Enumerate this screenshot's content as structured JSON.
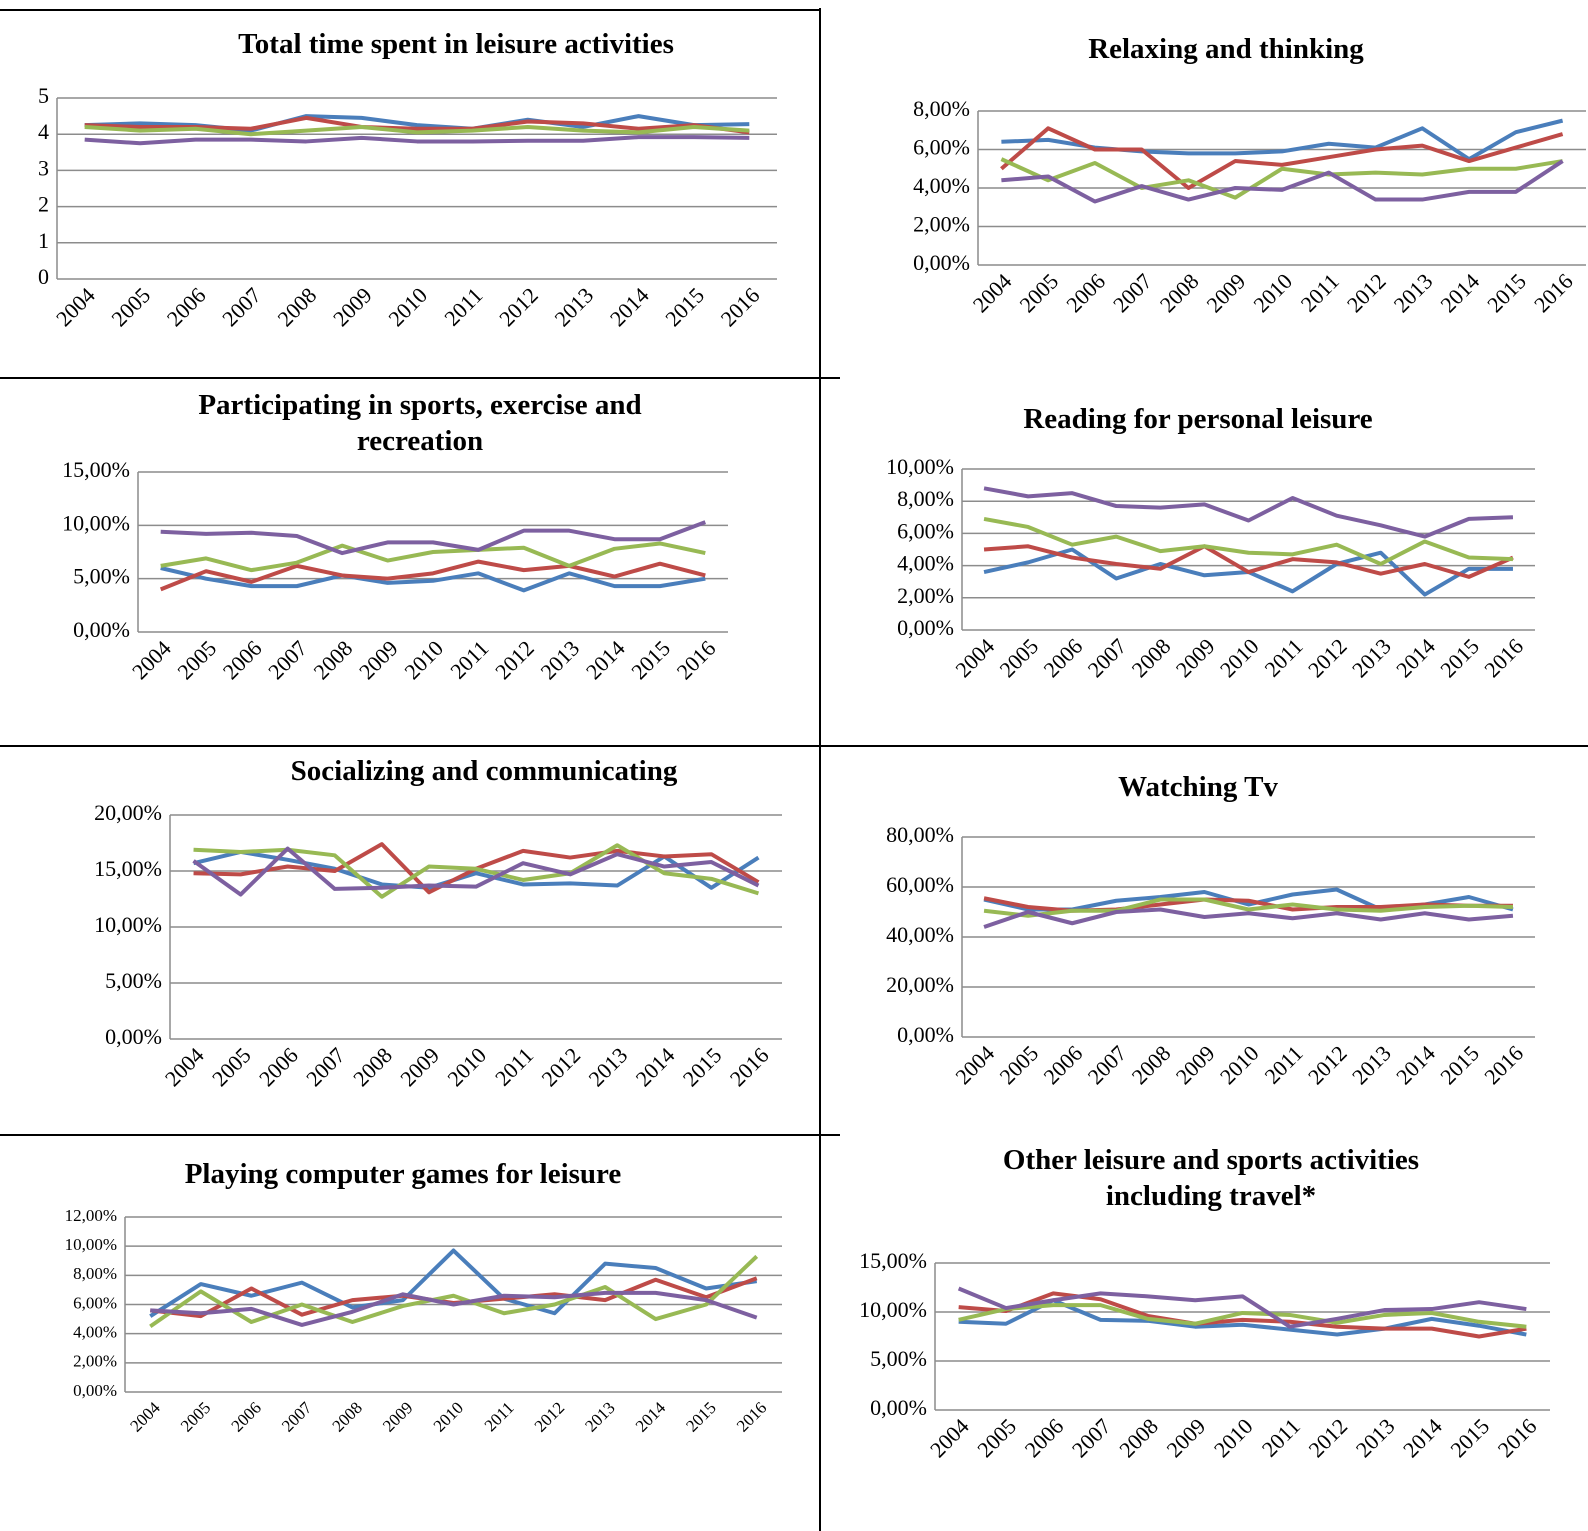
{
  "chart_data": [
    {
      "type": "line",
      "title": "Total time spent in leisure activities",
      "categories": [
        "2004",
        "2005",
        "2006",
        "2007",
        "2008",
        "2009",
        "2010",
        "2011",
        "2012",
        "2013",
        "2014",
        "2015",
        "2016"
      ],
      "series": [
        {
          "color": "#4a7ebb",
          "values": [
            4.25,
            4.3,
            4.25,
            4.1,
            4.5,
            4.45,
            4.25,
            4.15,
            4.4,
            4.2,
            4.5,
            4.25,
            4.28
          ]
        },
        {
          "color": "#be4b48",
          "values": [
            4.25,
            4.2,
            4.2,
            4.15,
            4.45,
            4.2,
            4.15,
            4.15,
            4.35,
            4.3,
            4.15,
            4.25,
            4.05
          ]
        },
        {
          "color": "#98b954",
          "values": [
            4.2,
            4.1,
            4.15,
            4.0,
            4.1,
            4.2,
            4.05,
            4.1,
            4.2,
            4.1,
            4.05,
            4.2,
            4.1
          ]
        },
        {
          "color": "#7d60a0",
          "values": [
            3.85,
            3.75,
            3.85,
            3.85,
            3.8,
            3.9,
            3.8,
            3.8,
            3.82,
            3.82,
            3.92,
            3.92,
            3.9
          ]
        }
      ],
      "ylim": [
        0,
        5
      ],
      "yticks": [
        0,
        1,
        2,
        3,
        4,
        5
      ],
      "grid": true
    },
    {
      "type": "line",
      "title": "Relaxing and thinking",
      "categories": [
        "2004",
        "2005",
        "2006",
        "2007",
        "2008",
        "2009",
        "2010",
        "2011",
        "2012",
        "2013",
        "2014",
        "2015",
        "2016"
      ],
      "series": [
        {
          "color": "#4a7ebb",
          "values": [
            6.4,
            6.5,
            6.1,
            5.9,
            5.8,
            5.8,
            5.9,
            6.3,
            6.1,
            7.1,
            5.5,
            6.9,
            7.5
          ]
        },
        {
          "color": "#be4b48",
          "values": [
            5.0,
            7.1,
            6.0,
            6.0,
            4.0,
            5.4,
            5.2,
            5.6,
            6.0,
            6.2,
            5.4,
            6.1,
            6.8
          ]
        },
        {
          "color": "#98b954",
          "values": [
            5.5,
            4.4,
            5.3,
            4.0,
            4.4,
            3.5,
            5.0,
            4.7,
            4.8,
            4.7,
            5.0,
            5.0,
            5.4
          ]
        },
        {
          "color": "#7d60a0",
          "values": [
            4.4,
            4.6,
            3.3,
            4.1,
            3.4,
            4.0,
            3.9,
            4.8,
            3.4,
            3.4,
            3.8,
            3.8,
            5.4
          ]
        }
      ],
      "ylim": [
        0,
        8
      ],
      "yticks": [
        {
          "value": 0,
          "label": "0,00%"
        },
        {
          "value": 2,
          "label": "2,00%"
        },
        {
          "value": 4,
          "label": "4,00%"
        },
        {
          "value": 6,
          "label": "6,00%"
        },
        {
          "value": 8,
          "label": "8,00%"
        }
      ],
      "grid": true
    },
    {
      "type": "line",
      "title": "Participating in sports, exercise and recreation",
      "categories": [
        "2004",
        "2005",
        "2006",
        "2007",
        "2008",
        "2009",
        "2010",
        "2011",
        "2012",
        "2013",
        "2014",
        "2015",
        "2016"
      ],
      "series": [
        {
          "color": "#4a7ebb",
          "values": [
            6.0,
            5.0,
            4.3,
            4.3,
            5.3,
            4.6,
            4.8,
            5.5,
            3.9,
            5.5,
            4.3,
            4.3,
            5.0
          ]
        },
        {
          "color": "#be4b48",
          "values": [
            4.0,
            5.7,
            4.7,
            6.2,
            5.3,
            5.0,
            5.5,
            6.6,
            5.8,
            6.2,
            5.2,
            6.4,
            5.3
          ]
        },
        {
          "color": "#98b954",
          "values": [
            6.2,
            6.9,
            5.8,
            6.5,
            8.1,
            6.7,
            7.5,
            7.7,
            7.9,
            6.2,
            7.8,
            8.3,
            7.4
          ]
        },
        {
          "color": "#7d60a0",
          "values": [
            9.4,
            9.2,
            9.3,
            9.0,
            7.4,
            8.4,
            8.4,
            7.7,
            9.5,
            9.5,
            8.7,
            8.7,
            10.3
          ]
        }
      ],
      "ylim": [
        0,
        15
      ],
      "yticks": [
        {
          "value": 0,
          "label": "0,00%"
        },
        {
          "value": 5,
          "label": "5,00%"
        },
        {
          "value": 10,
          "label": "10,00%"
        },
        {
          "value": 15,
          "label": "15,00%"
        }
      ],
      "grid": true
    },
    {
      "type": "line",
      "title": "Reading for personal leisure",
      "categories": [
        "2004",
        "2005",
        "2006",
        "2007",
        "2008",
        "2009",
        "2010",
        "2011",
        "2012",
        "2013",
        "2014",
        "2015",
        "2016"
      ],
      "series": [
        {
          "color": "#4a7ebb",
          "values": [
            3.6,
            4.2,
            5.0,
            3.2,
            4.1,
            3.4,
            3.6,
            2.4,
            4.1,
            4.8,
            2.2,
            3.8,
            3.8
          ]
        },
        {
          "color": "#be4b48",
          "values": [
            5.0,
            5.2,
            4.5,
            4.1,
            3.8,
            5.2,
            3.6,
            4.4,
            4.2,
            3.5,
            4.1,
            3.3,
            4.5
          ]
        },
        {
          "color": "#98b954",
          "values": [
            6.9,
            6.4,
            5.3,
            5.8,
            4.9,
            5.2,
            4.8,
            4.7,
            5.3,
            4.1,
            5.5,
            4.5,
            4.4
          ]
        },
        {
          "color": "#7d60a0",
          "values": [
            8.8,
            8.3,
            8.5,
            7.7,
            7.6,
            7.8,
            6.8,
            8.2,
            7.1,
            6.5,
            5.8,
            6.9,
            7.0
          ]
        }
      ],
      "ylim": [
        0,
        10
      ],
      "yticks": [
        {
          "value": 0,
          "label": "0,00%"
        },
        {
          "value": 2,
          "label": "2,00%"
        },
        {
          "value": 4,
          "label": "4,00%"
        },
        {
          "value": 6,
          "label": "6,00%"
        },
        {
          "value": 8,
          "label": "8,00%"
        },
        {
          "value": 10,
          "label": "10,00%"
        }
      ],
      "grid": true
    },
    {
      "type": "line",
      "title": "Socializing and communicating",
      "categories": [
        "2004",
        "2005",
        "2006",
        "2007",
        "2008",
        "2009",
        "2010",
        "2011",
        "2012",
        "2013",
        "2014",
        "2015",
        "2016"
      ],
      "series": [
        {
          "color": "#4a7ebb",
          "values": [
            15.7,
            16.7,
            16.0,
            15.2,
            13.8,
            13.5,
            14.8,
            13.8,
            13.9,
            13.7,
            16.3,
            13.5,
            16.2
          ]
        },
        {
          "color": "#be4b48",
          "values": [
            14.8,
            14.7,
            15.4,
            15.0,
            17.4,
            13.1,
            15.2,
            16.8,
            16.2,
            16.8,
            16.3,
            16.5,
            14.0
          ]
        },
        {
          "color": "#98b954",
          "values": [
            16.9,
            16.7,
            16.9,
            16.4,
            12.7,
            15.4,
            15.2,
            14.2,
            14.8,
            17.3,
            14.8,
            14.3,
            13.0
          ]
        },
        {
          "color": "#7d60a0",
          "values": [
            15.9,
            12.9,
            17.0,
            13.4,
            13.5,
            13.7,
            13.6,
            15.7,
            14.7,
            16.5,
            15.4,
            15.8,
            13.7
          ]
        }
      ],
      "ylim": [
        0,
        20
      ],
      "yticks": [
        {
          "value": 0,
          "label": "0,00%"
        },
        {
          "value": 5,
          "label": "5,00%"
        },
        {
          "value": 10,
          "label": "10,00%"
        },
        {
          "value": 15,
          "label": "15,00%"
        },
        {
          "value": 20,
          "label": "20,00%"
        }
      ],
      "grid": true
    },
    {
      "type": "line",
      "title": "Watching Tv",
      "categories": [
        "2004",
        "2005",
        "2006",
        "2007",
        "2008",
        "2009",
        "2010",
        "2011",
        "2012",
        "2013",
        "2014",
        "2015",
        "2016"
      ],
      "series": [
        {
          "color": "#4a7ebb",
          "values": [
            55,
            51,
            51,
            54.5,
            56,
            58,
            53,
            57,
            59,
            51,
            53,
            56,
            51
          ]
        },
        {
          "color": "#be4b48",
          "values": [
            55.5,
            52,
            50.5,
            51,
            53,
            55,
            54.5,
            51,
            52,
            52,
            53,
            52.5,
            52.5
          ]
        },
        {
          "color": "#98b954",
          "values": [
            50.5,
            48.5,
            50.5,
            50.5,
            55,
            55,
            51,
            53,
            51,
            50.5,
            52,
            52.5,
            52
          ]
        },
        {
          "color": "#7d60a0",
          "values": [
            44,
            50,
            45.5,
            50,
            51,
            48,
            49.5,
            47.5,
            49.5,
            47,
            49.5,
            47,
            48.5
          ]
        }
      ],
      "ylim": [
        0,
        80
      ],
      "yticks": [
        {
          "value": 0,
          "label": "0,00%"
        },
        {
          "value": 20,
          "label": "20,00%"
        },
        {
          "value": 40,
          "label": "40,00%"
        },
        {
          "value": 60,
          "label": "60,00%"
        },
        {
          "value": 80,
          "label": "80,00%"
        }
      ],
      "grid": true
    },
    {
      "type": "line",
      "title": "Playing computer games for leisure",
      "categories": [
        "2004",
        "2005",
        "2006",
        "2007",
        "2008",
        "2009",
        "2010",
        "2011",
        "2012",
        "2013",
        "2014",
        "2015",
        "2016"
      ],
      "series": [
        {
          "color": "#4a7ebb",
          "values": [
            5.2,
            7.4,
            6.6,
            7.5,
            5.8,
            6.3,
            9.7,
            6.4,
            5.4,
            8.8,
            8.5,
            7.1,
            7.6
          ]
        },
        {
          "color": "#be4b48",
          "values": [
            5.6,
            5.2,
            7.1,
            5.3,
            6.3,
            6.6,
            6.1,
            6.4,
            6.7,
            6.3,
            7.7,
            6.5,
            7.8
          ]
        },
        {
          "color": "#98b954",
          "values": [
            4.5,
            6.9,
            4.8,
            6.0,
            4.8,
            5.9,
            6.6,
            5.4,
            6.0,
            7.2,
            5.0,
            6.0,
            9.3
          ]
        },
        {
          "color": "#7d60a0",
          "values": [
            5.6,
            5.4,
            5.7,
            4.6,
            5.5,
            6.7,
            6.0,
            6.6,
            6.5,
            6.8,
            6.8,
            6.3,
            5.1
          ]
        }
      ],
      "ylim": [
        0,
        12
      ],
      "yticks": [
        {
          "value": 0,
          "label": "0,00%"
        },
        {
          "value": 2,
          "label": "2,00%"
        },
        {
          "value": 4,
          "label": "4,00%"
        },
        {
          "value": 6,
          "label": "6,00%"
        },
        {
          "value": 8,
          "label": "8,00%"
        },
        {
          "value": 10,
          "label": "10,00%"
        },
        {
          "value": 12,
          "label": "12,00%"
        }
      ],
      "grid": true
    },
    {
      "type": "line",
      "title": "Other leisure and sports activities including travel*",
      "categories": [
        "2004",
        "2005",
        "2006",
        "2007",
        "2008",
        "2009",
        "2010",
        "2011",
        "2012",
        "2013",
        "2014",
        "2015",
        "2016"
      ],
      "series": [
        {
          "color": "#4a7ebb",
          "values": [
            9.0,
            8.8,
            11.2,
            9.2,
            9.1,
            8.5,
            8.7,
            8.2,
            7.7,
            8.3,
            9.3,
            8.6,
            7.7
          ]
        },
        {
          "color": "#be4b48",
          "values": [
            10.5,
            10.1,
            11.9,
            11.3,
            9.6,
            8.8,
            9.2,
            9.0,
            8.5,
            8.3,
            8.3,
            7.5,
            8.3
          ]
        },
        {
          "color": "#98b954",
          "values": [
            9.2,
            10.3,
            10.7,
            10.7,
            9.3,
            8.8,
            9.9,
            9.7,
            8.9,
            9.7,
            9.9,
            9.0,
            8.5
          ]
        },
        {
          "color": "#7d60a0",
          "values": [
            12.4,
            10.4,
            11.2,
            11.9,
            11.6,
            11.2,
            11.6,
            8.5,
            9.3,
            10.2,
            10.3,
            11.0,
            10.3
          ]
        }
      ],
      "ylim": [
        0,
        15
      ],
      "yticks": [
        {
          "value": 0,
          "label": "0,00%"
        },
        {
          "value": 5,
          "label": "5,00%"
        },
        {
          "value": 10,
          "label": "10,00%"
        },
        {
          "value": 15,
          "label": "15,00%"
        }
      ],
      "grid": true
    }
  ]
}
